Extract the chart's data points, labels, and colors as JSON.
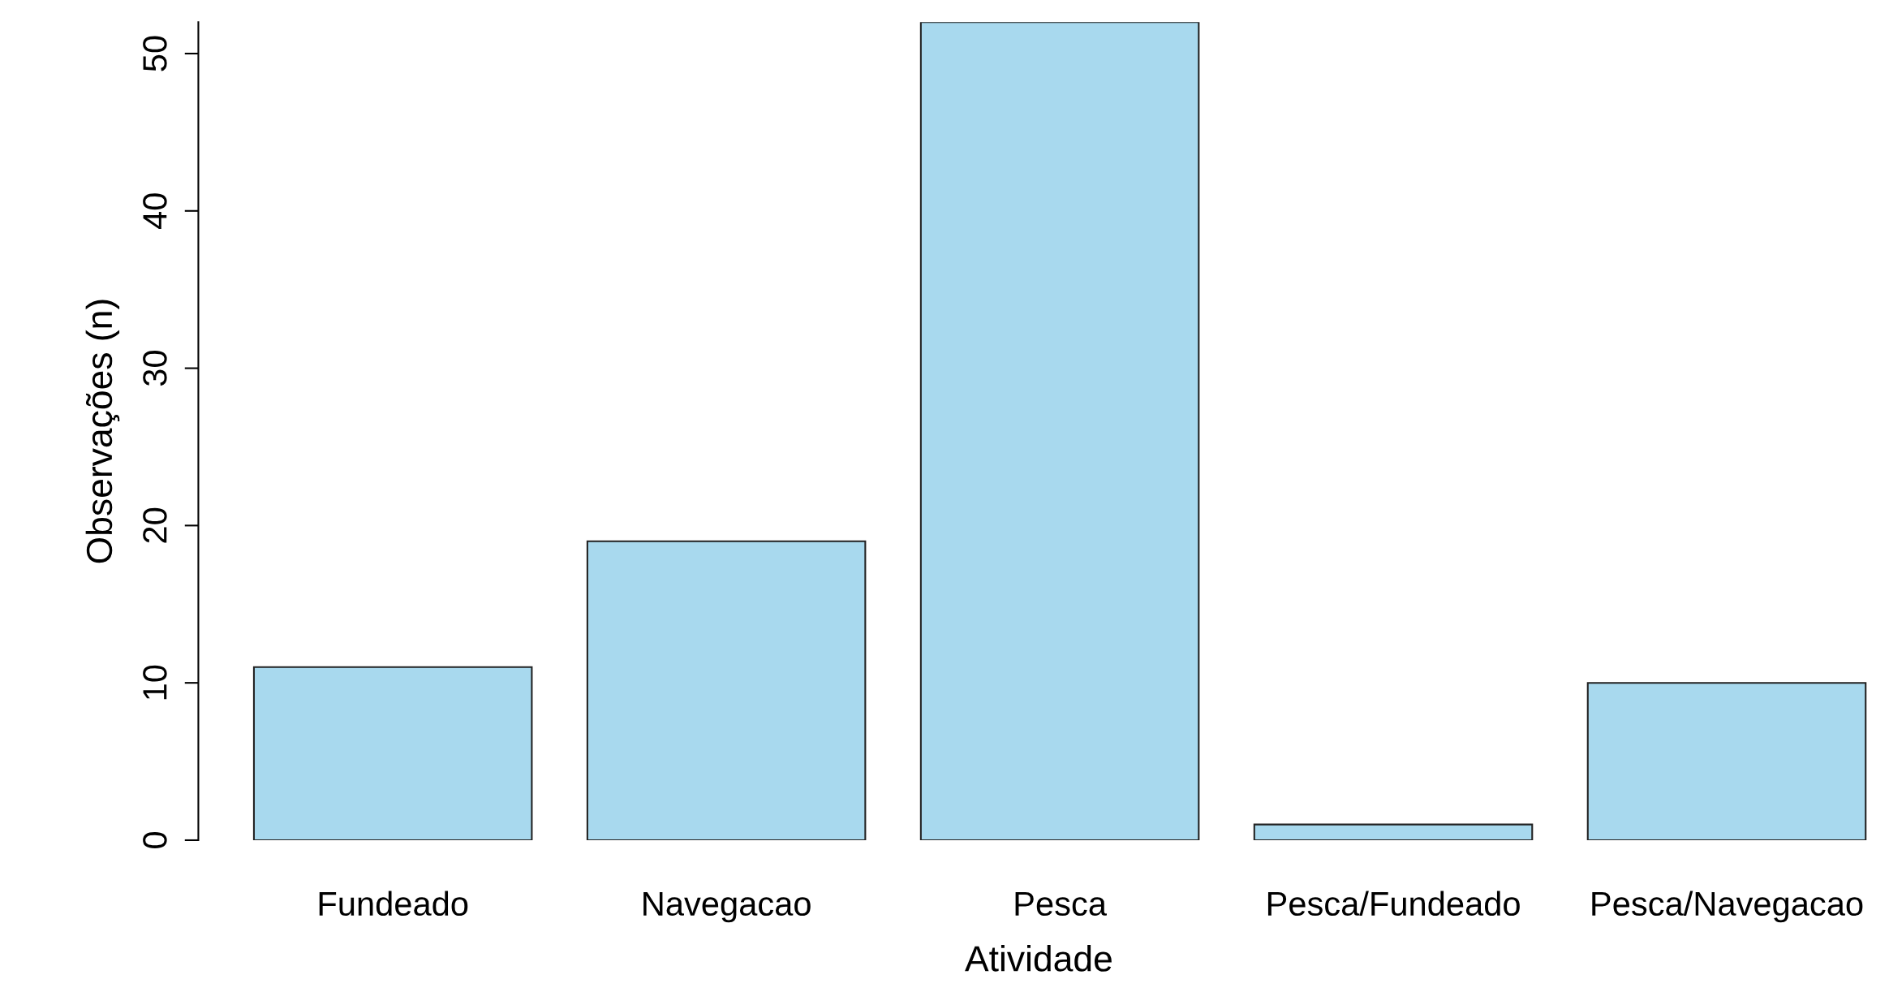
{
  "chart_data": {
    "type": "bar",
    "xlabel": "Atividade",
    "ylabel": "Observações (n)",
    "categories": [
      "Fundeado",
      "Navegacao",
      "Pesca",
      "Pesca/Fundeado",
      "Pesca/Navegacao"
    ],
    "values": [
      11,
      19,
      52,
      1,
      10
    ],
    "color": "#a8d9ee",
    "ylim": [
      0,
      52
    ],
    "yticks": [
      0,
      10,
      20,
      30,
      40,
      50
    ],
    "grid": false,
    "legend": false
  }
}
